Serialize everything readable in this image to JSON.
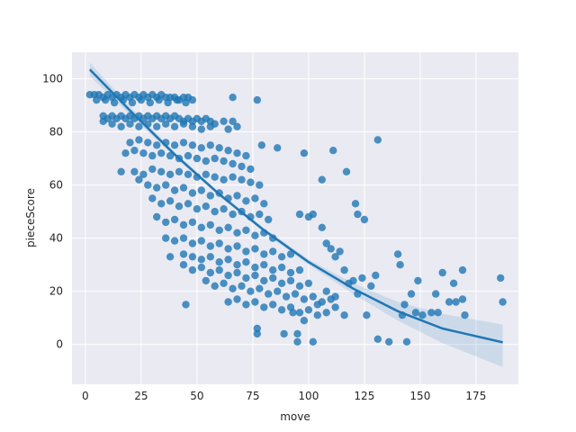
{
  "chart_data": {
    "type": "scatter",
    "title": "",
    "xlabel": "move",
    "ylabel": "pieceScore",
    "xlim": [
      -6,
      194
    ],
    "ylim": [
      -15,
      110
    ],
    "x_ticks": [
      0,
      25,
      50,
      75,
      100,
      125,
      150,
      175
    ],
    "y_ticks": [
      0,
      20,
      40,
      60,
      80,
      100
    ],
    "x_tick_labels": [
      "0",
      "25",
      "50",
      "75",
      "100",
      "125",
      "150",
      "175"
    ],
    "y_tick_labels": [
      "0",
      "20",
      "40",
      "60",
      "80",
      "100"
    ],
    "grid": true,
    "legend": "none",
    "colors": {
      "background": "#eaeaf2",
      "points": "#1f77b4",
      "line": "#1f77b4",
      "band": "#1f77b4"
    },
    "points": [
      [
        2,
        94
      ],
      [
        4,
        94
      ],
      [
        6,
        94
      ],
      [
        8,
        93
      ],
      [
        10,
        94
      ],
      [
        12,
        93
      ],
      [
        14,
        94
      ],
      [
        16,
        93
      ],
      [
        18,
        94
      ],
      [
        20,
        93
      ],
      [
        22,
        94
      ],
      [
        24,
        93
      ],
      [
        26,
        94
      ],
      [
        28,
        93
      ],
      [
        30,
        94
      ],
      [
        32,
        93
      ],
      [
        34,
        94
      ],
      [
        36,
        93
      ],
      [
        38,
        93
      ],
      [
        40,
        93
      ],
      [
        42,
        92
      ],
      [
        44,
        93
      ],
      [
        46,
        93
      ],
      [
        48,
        92
      ],
      [
        5,
        92
      ],
      [
        9,
        92
      ],
      [
        13,
        91
      ],
      [
        17,
        92
      ],
      [
        21,
        91
      ],
      [
        25,
        92
      ],
      [
        29,
        91
      ],
      [
        33,
        92
      ],
      [
        37,
        91
      ],
      [
        41,
        92
      ],
      [
        45,
        91
      ],
      [
        8,
        86
      ],
      [
        10,
        85
      ],
      [
        12,
        86
      ],
      [
        14,
        85
      ],
      [
        16,
        86
      ],
      [
        18,
        85
      ],
      [
        20,
        86
      ],
      [
        22,
        85
      ],
      [
        24,
        86
      ],
      [
        26,
        85
      ],
      [
        28,
        86
      ],
      [
        30,
        85
      ],
      [
        32,
        86
      ],
      [
        34,
        85
      ],
      [
        36,
        86
      ],
      [
        38,
        85
      ],
      [
        40,
        86
      ],
      [
        42,
        85
      ],
      [
        44,
        84
      ],
      [
        46,
        85
      ],
      [
        48,
        84
      ],
      [
        50,
        85
      ],
      [
        52,
        84
      ],
      [
        54,
        85
      ],
      [
        56,
        84
      ],
      [
        58,
        83
      ],
      [
        12,
        83
      ],
      [
        16,
        82
      ],
      [
        20,
        83
      ],
      [
        24,
        82
      ],
      [
        28,
        83
      ],
      [
        32,
        82
      ],
      [
        36,
        83
      ],
      [
        40,
        82
      ],
      [
        44,
        83
      ],
      [
        48,
        82
      ],
      [
        52,
        81
      ],
      [
        56,
        82
      ],
      [
        8,
        84
      ],
      [
        62,
        84
      ],
      [
        66,
        84
      ],
      [
        68,
        82
      ],
      [
        64,
        81
      ],
      [
        20,
        76
      ],
      [
        24,
        77
      ],
      [
        28,
        76
      ],
      [
        32,
        75
      ],
      [
        36,
        76
      ],
      [
        40,
        75
      ],
      [
        44,
        76
      ],
      [
        48,
        75
      ],
      [
        52,
        74
      ],
      [
        56,
        75
      ],
      [
        60,
        74
      ],
      [
        64,
        73
      ],
      [
        68,
        72
      ],
      [
        72,
        71
      ],
      [
        18,
        72
      ],
      [
        22,
        73
      ],
      [
        26,
        72
      ],
      [
        30,
        71
      ],
      [
        34,
        72
      ],
      [
        38,
        71
      ],
      [
        42,
        70
      ],
      [
        46,
        71
      ],
      [
        50,
        70
      ],
      [
        54,
        69
      ],
      [
        58,
        70
      ],
      [
        62,
        69
      ],
      [
        66,
        68
      ],
      [
        70,
        67
      ],
      [
        74,
        66
      ],
      [
        16,
        65
      ],
      [
        22,
        65
      ],
      [
        26,
        64
      ],
      [
        30,
        66
      ],
      [
        34,
        65
      ],
      [
        38,
        64
      ],
      [
        42,
        65
      ],
      [
        46,
        64
      ],
      [
        50,
        63
      ],
      [
        54,
        64
      ],
      [
        58,
        63
      ],
      [
        62,
        62
      ],
      [
        66,
        63
      ],
      [
        70,
        62
      ],
      [
        74,
        61
      ],
      [
        78,
        60
      ],
      [
        24,
        62
      ],
      [
        28,
        60
      ],
      [
        32,
        59
      ],
      [
        36,
        60
      ],
      [
        40,
        58
      ],
      [
        44,
        59
      ],
      [
        48,
        57
      ],
      [
        52,
        58
      ],
      [
        56,
        56
      ],
      [
        60,
        57
      ],
      [
        64,
        55
      ],
      [
        68,
        56
      ],
      [
        72,
        54
      ],
      [
        76,
        55
      ],
      [
        80,
        53
      ],
      [
        30,
        55
      ],
      [
        34,
        53
      ],
      [
        38,
        54
      ],
      [
        42,
        52
      ],
      [
        46,
        53
      ],
      [
        50,
        51
      ],
      [
        54,
        52
      ],
      [
        58,
        50
      ],
      [
        62,
        51
      ],
      [
        66,
        49
      ],
      [
        70,
        50
      ],
      [
        74,
        48
      ],
      [
        78,
        49
      ],
      [
        82,
        47
      ],
      [
        32,
        48
      ],
      [
        36,
        46
      ],
      [
        40,
        47
      ],
      [
        44,
        45
      ],
      [
        48,
        46
      ],
      [
        52,
        44
      ],
      [
        56,
        45
      ],
      [
        60,
        43
      ],
      [
        64,
        44
      ],
      [
        68,
        42
      ],
      [
        72,
        43
      ],
      [
        76,
        41
      ],
      [
        80,
        42
      ],
      [
        84,
        40
      ],
      [
        36,
        40
      ],
      [
        40,
        39
      ],
      [
        44,
        40
      ],
      [
        48,
        38
      ],
      [
        52,
        39
      ],
      [
        56,
        37
      ],
      [
        60,
        38
      ],
      [
        64,
        36
      ],
      [
        68,
        37
      ],
      [
        72,
        35
      ],
      [
        76,
        36
      ],
      [
        80,
        34
      ],
      [
        84,
        35
      ],
      [
        88,
        33
      ],
      [
        92,
        34
      ],
      [
        38,
        33
      ],
      [
        44,
        34
      ],
      [
        48,
        33
      ],
      [
        52,
        32
      ],
      [
        56,
        33
      ],
      [
        60,
        31
      ],
      [
        64,
        32
      ],
      [
        68,
        30
      ],
      [
        72,
        31
      ],
      [
        76,
        29
      ],
      [
        80,
        30
      ],
      [
        84,
        28
      ],
      [
        88,
        29
      ],
      [
        92,
        27
      ],
      [
        96,
        28
      ],
      [
        44,
        30
      ],
      [
        48,
        28
      ],
      [
        52,
        29
      ],
      [
        56,
        27
      ],
      [
        60,
        28
      ],
      [
        64,
        26
      ],
      [
        68,
        27
      ],
      [
        72,
        25
      ],
      [
        76,
        26
      ],
      [
        80,
        24
      ],
      [
        84,
        25
      ],
      [
        88,
        23
      ],
      [
        92,
        24
      ],
      [
        96,
        22
      ],
      [
        100,
        23
      ],
      [
        54,
        24
      ],
      [
        58,
        22
      ],
      [
        62,
        23
      ],
      [
        66,
        21
      ],
      [
        70,
        22
      ],
      [
        74,
        20
      ],
      [
        78,
        21
      ],
      [
        82,
        19
      ],
      [
        86,
        20
      ],
      [
        90,
        18
      ],
      [
        94,
        19
      ],
      [
        98,
        17
      ],
      [
        102,
        18
      ],
      [
        106,
        16
      ],
      [
        110,
        17
      ],
      [
        64,
        16
      ],
      [
        68,
        17
      ],
      [
        72,
        15
      ],
      [
        76,
        16
      ],
      [
        80,
        14
      ],
      [
        84,
        15
      ],
      [
        88,
        13
      ],
      [
        92,
        14
      ],
      [
        96,
        12
      ],
      [
        100,
        13
      ],
      [
        104,
        11
      ],
      [
        108,
        12
      ],
      [
        112,
        14
      ],
      [
        116,
        11
      ],
      [
        45,
        15
      ],
      [
        66,
        93
      ],
      [
        77,
        92
      ],
      [
        79,
        75
      ],
      [
        86,
        74
      ],
      [
        98,
        72
      ],
      [
        106,
        62
      ],
      [
        111,
        73
      ],
      [
        117,
        65
      ],
      [
        121,
        53
      ],
      [
        122,
        49
      ],
      [
        125,
        47
      ],
      [
        131,
        77
      ],
      [
        96,
        49
      ],
      [
        100,
        48
      ],
      [
        102,
        49
      ],
      [
        106,
        44
      ],
      [
        108,
        38
      ],
      [
        110,
        36
      ],
      [
        112,
        33
      ],
      [
        114,
        35
      ],
      [
        116,
        28
      ],
      [
        118,
        23
      ],
      [
        120,
        24
      ],
      [
        122,
        19
      ],
      [
        124,
        25
      ],
      [
        126,
        11
      ],
      [
        128,
        22
      ],
      [
        130,
        26
      ],
      [
        131,
        2
      ],
      [
        136,
        1
      ],
      [
        140,
        34
      ],
      [
        141,
        30
      ],
      [
        142,
        11
      ],
      [
        144,
        1
      ],
      [
        143,
        15
      ],
      [
        146,
        19
      ],
      [
        148,
        12
      ],
      [
        149,
        24
      ],
      [
        151,
        11
      ],
      [
        155,
        12
      ],
      [
        157,
        19
      ],
      [
        158,
        12
      ],
      [
        160,
        27
      ],
      [
        163,
        16
      ],
      [
        165,
        23
      ],
      [
        166,
        16
      ],
      [
        169,
        28
      ],
      [
        169,
        17
      ],
      [
        170,
        11
      ],
      [
        186,
        25
      ],
      [
        187,
        16
      ],
      [
        77,
        4
      ],
      [
        77,
        6
      ],
      [
        89,
        4
      ],
      [
        95,
        4
      ],
      [
        95,
        1
      ],
      [
        102,
        1
      ],
      [
        98,
        9
      ],
      [
        93,
        12
      ],
      [
        104,
        15
      ],
      [
        108,
        20
      ],
      [
        112,
        18
      ]
    ],
    "fit": {
      "x": [
        2,
        20,
        40,
        60,
        80,
        100,
        120,
        140,
        160,
        187
      ],
      "y": [
        103.5,
        88.0,
        71.5,
        56.5,
        43.0,
        31.0,
        21.0,
        12.5,
        6.0,
        0.8
      ],
      "ci_lower": [
        101.0,
        86.5,
        70.5,
        55.8,
        42.2,
        30.0,
        19.0,
        9.0,
        0.5,
        -8.5
      ],
      "ci_upper": [
        106.0,
        89.5,
        72.5,
        57.2,
        43.8,
        32.0,
        23.0,
        16.0,
        11.5,
        7.5
      ]
    }
  }
}
